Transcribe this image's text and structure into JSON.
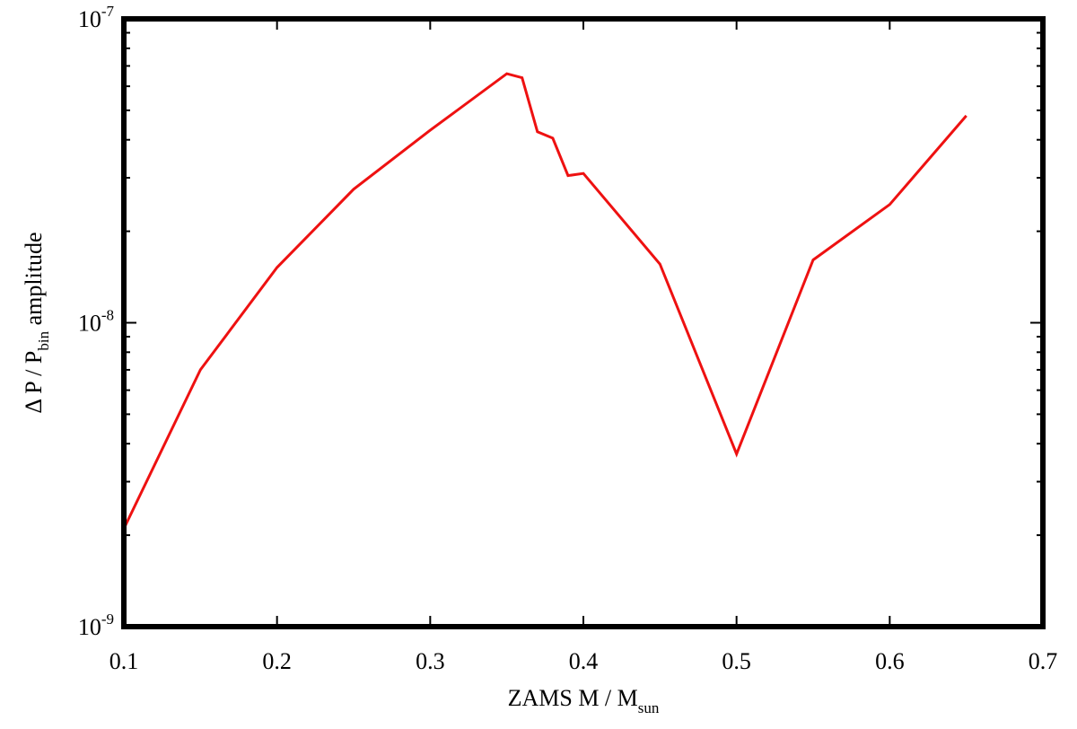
{
  "chart_data": {
    "type": "line",
    "xlabel": {
      "main": "ZAMS M / M",
      "sub": "sun"
    },
    "ylabel": {
      "pre": "Δ P / P",
      "sub": "bin",
      "post": " amplitude"
    },
    "xlim": [
      0.1,
      0.7
    ],
    "ylim": [
      1e-09,
      1e-07
    ],
    "y_scale": "log",
    "grid": false,
    "x_ticks": [
      {
        "value": 0.1,
        "label": "0.1"
      },
      {
        "value": 0.2,
        "label": "0.2"
      },
      {
        "value": 0.3,
        "label": "0.3"
      },
      {
        "value": 0.4,
        "label": "0.4"
      },
      {
        "value": 0.5,
        "label": "0.5"
      },
      {
        "value": 0.6,
        "label": "0.6"
      },
      {
        "value": 0.7,
        "label": "0.7"
      }
    ],
    "y_ticks": [
      {
        "value": 1e-09,
        "base": "10",
        "exp": "-9"
      },
      {
        "value": 1e-08,
        "base": "10",
        "exp": "-8"
      },
      {
        "value": 1e-07,
        "base": "10",
        "exp": "-7"
      }
    ],
    "series": [
      {
        "color": "#ee1111",
        "x": [
          0.1,
          0.15,
          0.2,
          0.25,
          0.3,
          0.35,
          0.36,
          0.37,
          0.38,
          0.39,
          0.4,
          0.45,
          0.5,
          0.55,
          0.6,
          0.65
        ],
        "y": [
          2.1e-09,
          7e-09,
          1.52e-08,
          2.75e-08,
          4.3e-08,
          6.6e-08,
          6.4e-08,
          4.25e-08,
          4.05e-08,
          3.05e-08,
          3.1e-08,
          1.56e-08,
          3.7e-09,
          1.61e-08,
          2.45e-08,
          4.8e-08
        ]
      }
    ]
  }
}
